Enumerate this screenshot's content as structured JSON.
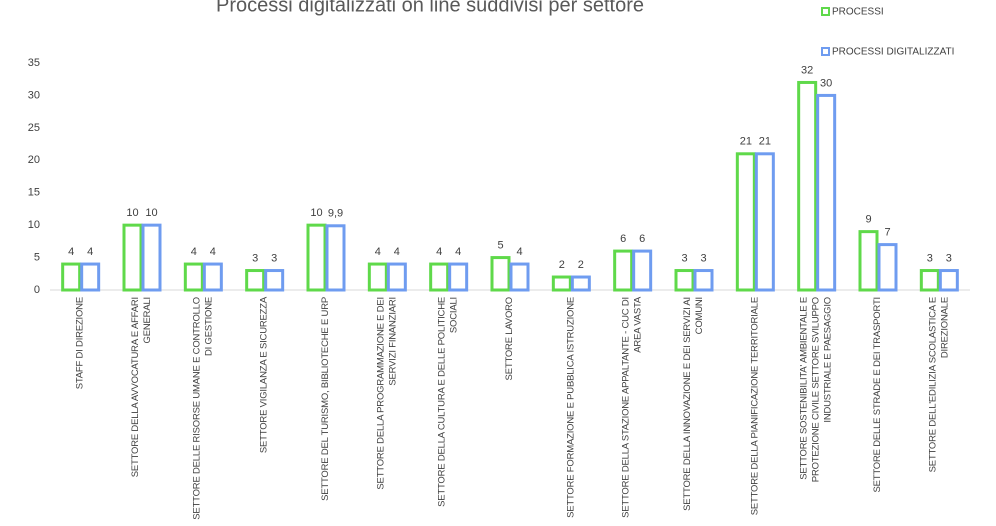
{
  "chart_data": {
    "type": "bar",
    "title": "Processi digitalizzati on line suddivisi per settore",
    "categories": [
      "STAFF DI DIREZIONE",
      "SETTORE DELLA AVVOCATURA E AFFARI GENERALI",
      "SETTORE DELLE RISORSE UMANE E CONTROLLO DI GESTIONE",
      "SETTORE VIGILANZA E SICUREZZA",
      "SETTORE DEL TURISMO, BIBLIOTECHE E URP",
      "SETTORE DELLA PROGRAMMAZIONE E DEI SERVIZI FINANZIARI",
      "SETTORE DELLA CULTURA E DELLE POLITICHE SOCIALI",
      "SETTORE LAVORO",
      "SETTORE FORMAZIONE E PUBBLICA ISTRUZIONE",
      "SETTORE DELLA STAZIONE APPALTANTE - CUC DI AREA VASTA",
      "SETTORE DELLA INNOVAZIONE E DEI SERVIZI AI COMUNI",
      "SETTORE DELLA PIANIFICAZIONE TERRITORIALE",
      "SETTORE SOSTENIBILITA' AMBIENTALE E PROTEZIONE CIVILE SETTORE SVILUPPO INDUSTRIALE E PAESAGGIO",
      "SETTORE DELLE STRADE E DEI TRASPORTI",
      "SETTORE DELL'EDILIZIA SCOLASTICA E DIREZIONALE"
    ],
    "series": [
      {
        "name": "PROCESSI",
        "color": "#5fd94a",
        "values": [
          4,
          10,
          4,
          3,
          10,
          4,
          4,
          5,
          2,
          6,
          3,
          21,
          32,
          9,
          3
        ]
      },
      {
        "name": "PROCESSI DIGITALIZZATI",
        "color": "#6f9cf0",
        "values": [
          4,
          10,
          4,
          3,
          9.9,
          4,
          4,
          4,
          2,
          6,
          3,
          21,
          30,
          7,
          3
        ],
        "value_labels": [
          "4",
          "10",
          "4",
          "3",
          "9,9",
          "4",
          "4",
          "4",
          "2",
          "6",
          "3",
          "21",
          "30",
          "7",
          "3"
        ]
      }
    ],
    "ylim": [
      0,
      35
    ],
    "yticks": [
      0,
      5,
      10,
      15,
      20,
      25,
      30,
      35
    ],
    "grid": false,
    "legend": "top-right"
  }
}
